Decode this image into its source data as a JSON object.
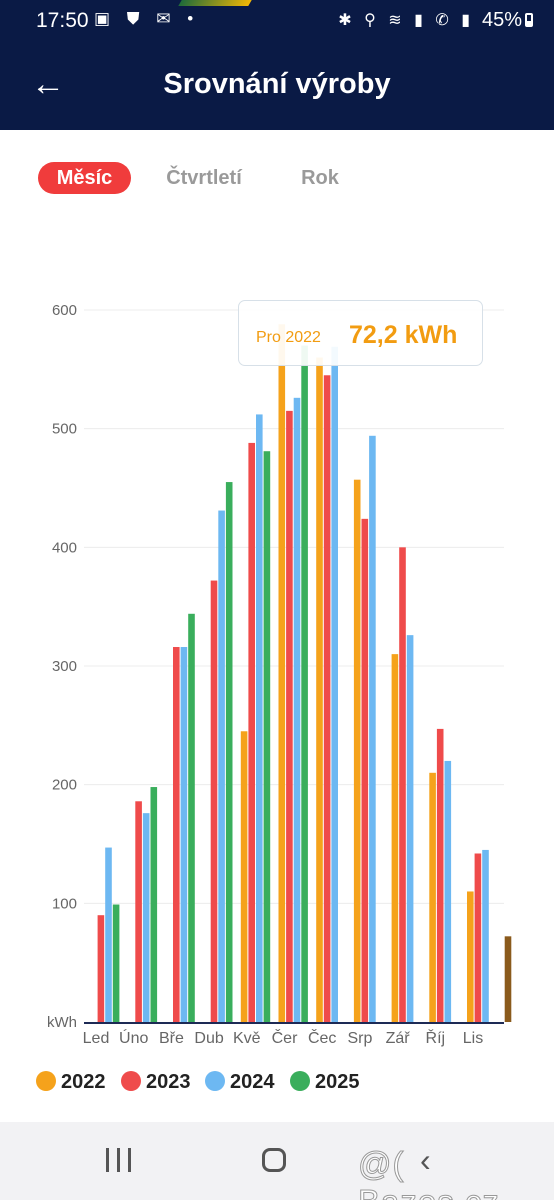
{
  "status_bar": {
    "time": "17:50",
    "battery": "45%"
  },
  "header": {
    "title": "Srovnání výroby"
  },
  "tabs": [
    {
      "label": "Měsíc",
      "active": true
    },
    {
      "label": "Čtvrtletí",
      "active": false
    },
    {
      "label": "Rok",
      "active": false
    }
  ],
  "tooltip": {
    "label": "Pro 2022",
    "value": "72,2 kWh"
  },
  "watermark": "@( Bazos.cz",
  "chart_data": {
    "type": "bar",
    "ylabel": "kWh",
    "ylim": [
      0,
      600
    ],
    "yticks": [
      100,
      200,
      300,
      400,
      500,
      600
    ],
    "grid": true,
    "legend_position": "bottom-left",
    "categories": [
      "Led",
      "Úno",
      "Bře",
      "Dub",
      "Kvě",
      "Čer",
      "Čec",
      "Srp",
      "Zář",
      "Říj",
      "Lis",
      "Pro"
    ],
    "category_labels": [
      "Led",
      "Úno",
      "Bře",
      "Dub",
      "Kvě",
      "Čer",
      "Čec",
      "Srp",
      "Zář",
      "Říj",
      "Lis"
    ],
    "series": [
      {
        "name": "2022",
        "color": "#f5a21b",
        "values": [
          0,
          0,
          0,
          0,
          245,
          588,
          560,
          457,
          310,
          210,
          110,
          72.2
        ]
      },
      {
        "name": "2023",
        "color": "#ef4b4b",
        "values": [
          90,
          186,
          316,
          372,
          488,
          515,
          545,
          424,
          400,
          247,
          142,
          0
        ]
      },
      {
        "name": "2024",
        "color": "#6db8f2",
        "values": [
          147,
          176,
          316,
          431,
          512,
          526,
          569,
          494,
          326,
          220,
          145,
          0
        ]
      },
      {
        "name": "2025",
        "color": "#3aae5c",
        "values": [
          99,
          198,
          344,
          455,
          481,
          570,
          0,
          0,
          0,
          0,
          0,
          0
        ]
      }
    ],
    "highlight": {
      "category": "Pro",
      "series": "2022",
      "value": 72.2,
      "color": "#8a5a1c"
    }
  }
}
